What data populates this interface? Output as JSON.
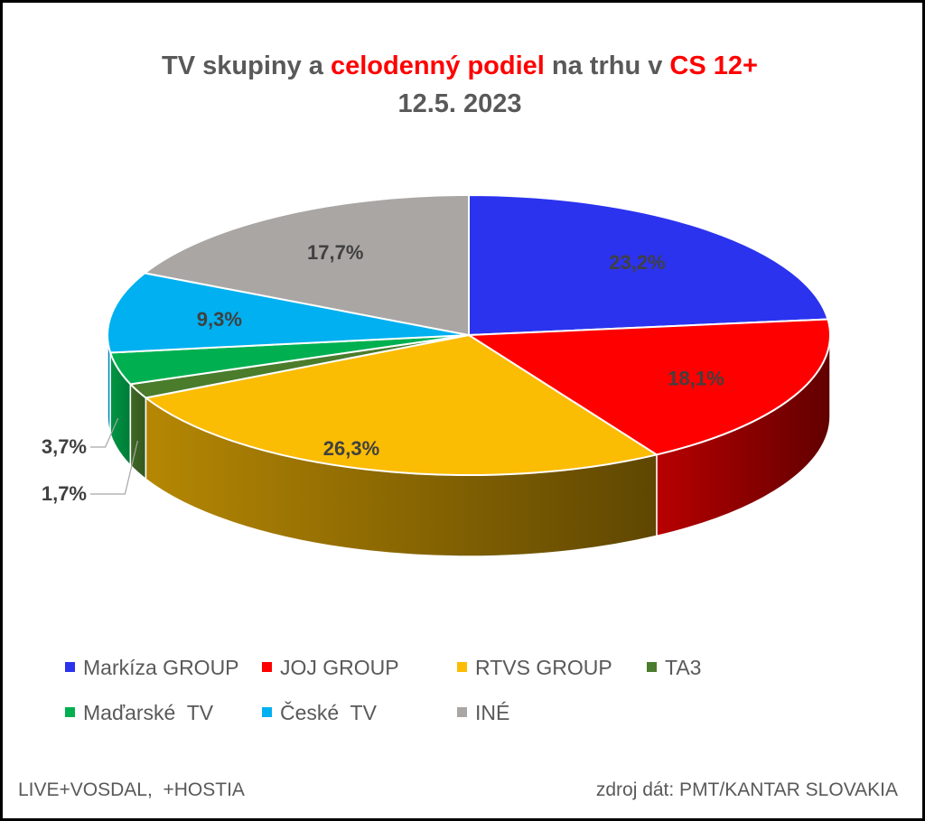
{
  "title": {
    "line1_a": "TV skupiny a ",
    "line1_b": "celodenný podiel",
    "line1_c": " na trhu v ",
    "line1_d": "CS 12+",
    "line2": "12.5. 2023"
  },
  "chart_data": {
    "type": "pie",
    "style": "3d",
    "categories": [
      "Markíza GROUP",
      "JOJ GROUP",
      "RTVS GROUP",
      "TA3",
      "Maďarské  TV",
      "České  TV",
      "INÉ"
    ],
    "values": [
      23.2,
      18.1,
      26.3,
      1.7,
      3.7,
      9.3,
      17.7
    ],
    "labels": [
      "23,2%",
      "18,1%",
      "26,3%",
      "1,7%",
      "3,7%",
      "9,3%",
      "17,7%"
    ],
    "colors": [
      "#2b33ee",
      "#ff0000",
      "#fbbc04",
      "#4a7c2c",
      "#00b050",
      "#00b0f0",
      "#aaa6a4"
    ],
    "legend_position": "bottom"
  },
  "footer": {
    "left": "LIVE+VOSDAL,  +HOSTIA",
    "right": "zdroj dát: PMT/KANTAR SLOVAKIA"
  }
}
